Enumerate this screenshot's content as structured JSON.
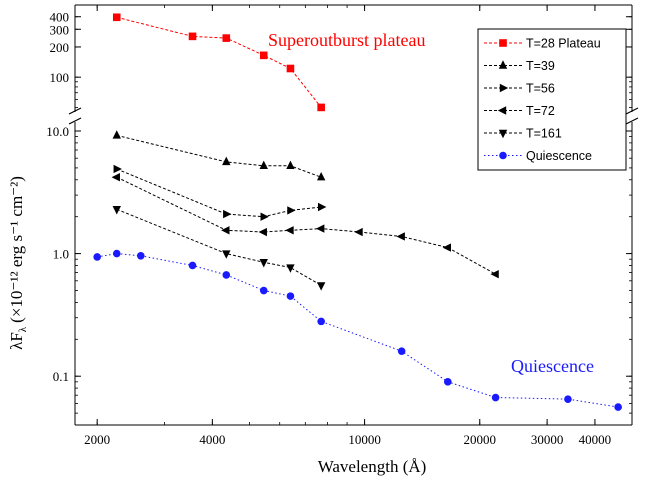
{
  "chart_data": {
    "type": "line",
    "xlabel": "Wavelength (Å)",
    "ylabel_main": "λF",
    "ylabel_sub": "λ",
    "ylabel_units": "(×10⁻¹² erg s⁻¹ cm⁻²)",
    "x_scale": "log",
    "y_scale": "log (broken axis)",
    "xlim": [
      1750,
      50000
    ],
    "ylim_lower": [
      0.04,
      10
    ],
    "ylim_upper": [
      45,
      500
    ],
    "x_ticks": [
      {
        "value": 2000,
        "label": "2000"
      },
      {
        "value": 4000,
        "label": "4000"
      },
      {
        "value": 10000,
        "label": "10000"
      },
      {
        "value": 20000,
        "label": "20000"
      },
      {
        "value": 30000,
        "label": "30000"
      },
      {
        "value": 40000,
        "label": "40000"
      }
    ],
    "y_ticks_upper": [
      {
        "value": 100,
        "label": "100"
      },
      {
        "value": 200,
        "label": "200"
      },
      {
        "value": 300,
        "label": "300"
      },
      {
        "value": 400,
        "label": "400"
      }
    ],
    "y_ticks_lower": [
      {
        "value": 10,
        "label": "10.0"
      },
      {
        "value": 1,
        "label": "1.0"
      },
      {
        "value": 0.1,
        "label": "0.1"
      }
    ],
    "annotations": [
      {
        "text": "Superoutburst plateau",
        "color": "#ff0000"
      },
      {
        "text": "Quiescence",
        "color": "#1a1aff"
      }
    ],
    "legend_position": "top-right",
    "series": [
      {
        "name": "T=28 Plateau",
        "color": "#ff0000",
        "marker": "square",
        "line": "dashed",
        "panel": "upper",
        "x": [
          2250,
          3550,
          4350,
          5450,
          6400,
          7700
        ],
        "y": [
          395,
          255,
          245,
          165,
          122,
          50
        ]
      },
      {
        "name": "T=39",
        "color": "#000000",
        "marker": "triangle-up",
        "line": "dashed",
        "panel": "lower",
        "x": [
          2250,
          4350,
          5450,
          6400,
          7700
        ],
        "y": [
          9.2,
          5.6,
          5.2,
          5.2,
          4.2
        ]
      },
      {
        "name": "T=56",
        "color": "#000000",
        "marker": "triangle-right",
        "line": "dashed",
        "panel": "lower",
        "x": [
          2250,
          4350,
          5450,
          6400,
          7700
        ],
        "y": [
          4.9,
          2.1,
          2.0,
          2.25,
          2.4
        ]
      },
      {
        "name": "T=72",
        "color": "#000000",
        "marker": "triangle-left",
        "line": "dashed",
        "panel": "lower",
        "x": [
          2250,
          4350,
          5450,
          6400,
          7700,
          9700,
          12500,
          16500,
          22000
        ],
        "y": [
          4.2,
          1.55,
          1.5,
          1.55,
          1.6,
          1.5,
          1.38,
          1.12,
          0.68
        ]
      },
      {
        "name": "T=161",
        "color": "#000000",
        "marker": "triangle-down",
        "line": "dashed",
        "panel": "lower",
        "x": [
          2250,
          4350,
          5450,
          6400,
          7700
        ],
        "y": [
          2.3,
          1.0,
          0.85,
          0.77,
          0.55
        ]
      },
      {
        "name": "Quiescence",
        "color": "#1a1aff",
        "marker": "circle",
        "line": "dotted",
        "panel": "lower",
        "x": [
          2000,
          2250,
          2600,
          3550,
          4350,
          5450,
          6400,
          7700,
          12500,
          16500,
          22000,
          34000,
          46000
        ],
        "y": [
          0.94,
          1.0,
          0.96,
          0.8,
          0.67,
          0.5,
          0.45,
          0.28,
          0.16,
          0.09,
          0.067,
          0.065,
          0.056
        ]
      }
    ]
  }
}
